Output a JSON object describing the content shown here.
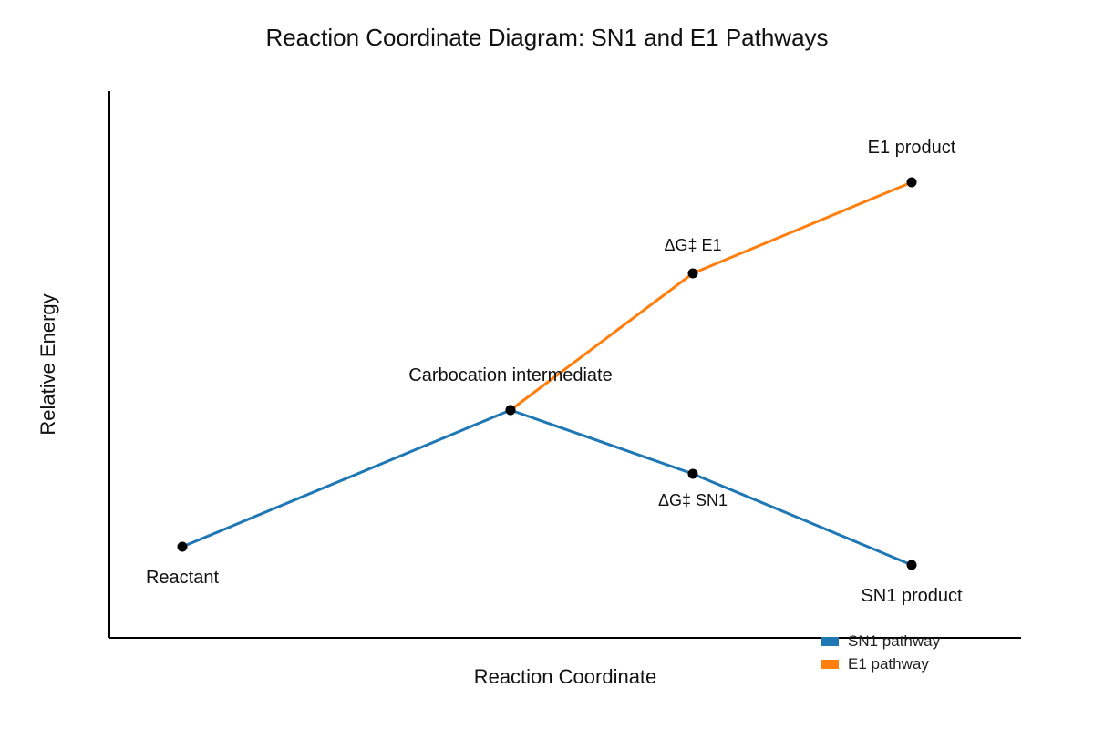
{
  "chart_data": {
    "type": "line",
    "title": "Reaction Coordinate Diagram: SN1 and E1 Pathways",
    "xlabel": "Reaction Coordinate",
    "ylabel": "Relative Energy",
    "xlim": [
      0,
      10
    ],
    "ylim": [
      0,
      6
    ],
    "grid": false,
    "legend_position": "bottom-right",
    "series": [
      {
        "name": "SN1 pathway",
        "color": "#1f77b4",
        "points": [
          {
            "x": 0.8,
            "y": 1.0,
            "label": "Reactant",
            "label_position": "below"
          },
          {
            "x": 4.4,
            "y": 2.5,
            "label": "Carbocation intermediate",
            "label_position": "above"
          },
          {
            "x": 6.4,
            "y": 1.8,
            "label": "ΔG‡ SN1",
            "label_position": "below"
          },
          {
            "x": 8.8,
            "y": 0.8,
            "label": "SN1 product",
            "label_position": "below"
          }
        ]
      },
      {
        "name": "E1 pathway",
        "color": "#ff7f0e",
        "points": [
          {
            "x": 4.4,
            "y": 2.5,
            "label": "",
            "label_position": "none"
          },
          {
            "x": 6.4,
            "y": 4.0,
            "label": "ΔG‡ E1",
            "label_position": "above"
          },
          {
            "x": 8.8,
            "y": 5.0,
            "label": "E1 product",
            "label_position": "above"
          }
        ]
      }
    ]
  }
}
